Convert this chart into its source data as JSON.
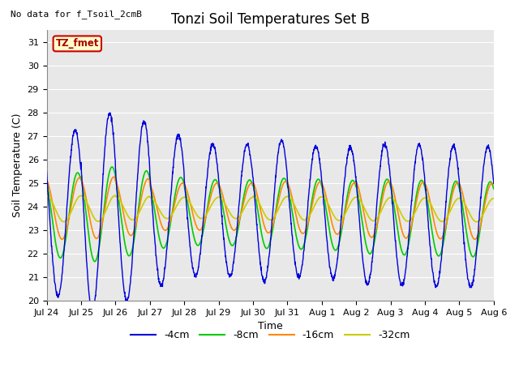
{
  "title": "Tonzi Soil Temperatures Set B",
  "no_data_label": "No data for f_Tsoil_2cmB",
  "tz_fmet_label": "TZ_fmet",
  "xlabel": "Time",
  "ylabel": "Soil Temperature (C)",
  "ylim": [
    20.0,
    31.5
  ],
  "yticks": [
    20.0,
    21.0,
    22.0,
    23.0,
    24.0,
    25.0,
    26.0,
    27.0,
    28.0,
    29.0,
    30.0,
    31.0
  ],
  "bg_color": "#e8e8e8",
  "colors": {
    "4cm": "#0000dd",
    "8cm": "#00cc00",
    "16cm": "#ff8800",
    "32cm": "#cccc00"
  },
  "legend_labels": [
    "-4cm",
    "-8cm",
    "-16cm",
    "-32cm"
  ],
  "x_tick_labels": [
    "Jul 24",
    "Jul 25",
    "Jul 26",
    "Jul 27",
    "Jul 28",
    "Jul 29",
    "Jul 30",
    "Jul 31",
    "Aug 1",
    "Aug 2",
    "Aug 3",
    "Aug 4",
    "Aug 5",
    "Aug 6"
  ],
  "title_fontsize": 12,
  "axis_label_fontsize": 9,
  "tick_fontsize": 8,
  "legend_fontsize": 9
}
